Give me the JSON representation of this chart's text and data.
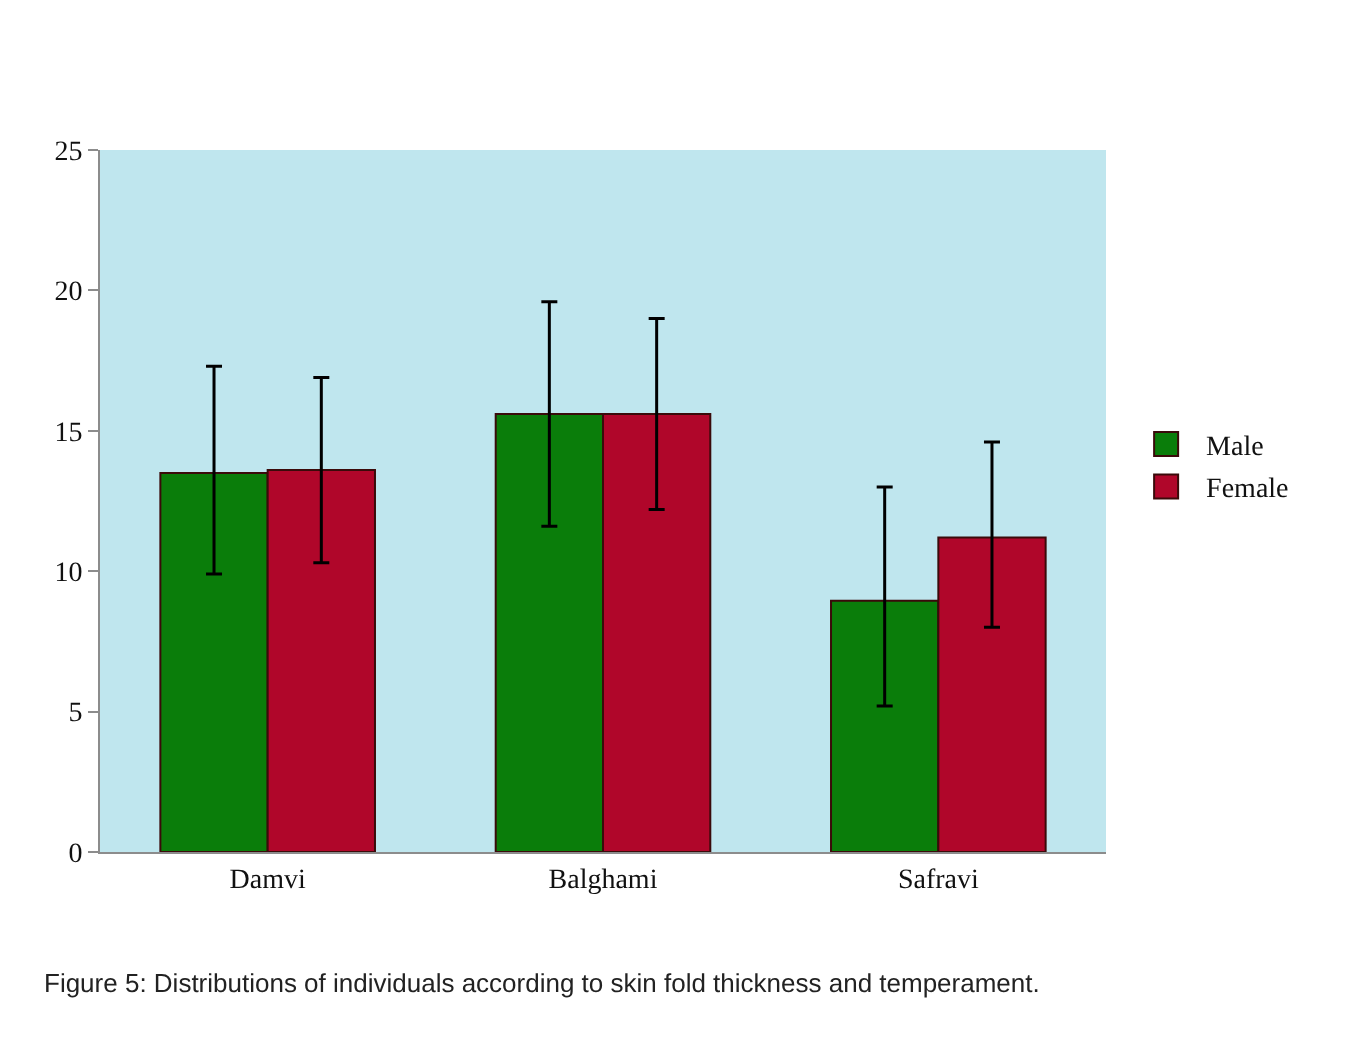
{
  "chart_data": {
    "type": "bar",
    "categories": [
      "Damvi",
      "Balghami",
      "Safravi"
    ],
    "series": [
      {
        "name": "Male",
        "color": "#0a7d0a",
        "values": [
          13.5,
          15.6,
          8.95
        ],
        "errors": [
          [
            9.9,
            17.3
          ],
          [
            11.6,
            19.6
          ],
          [
            5.2,
            13.0
          ]
        ]
      },
      {
        "name": "Female",
        "color": "#b0062a",
        "values": [
          13.6,
          15.6,
          11.2
        ],
        "errors": [
          [
            10.3,
            16.9
          ],
          [
            12.2,
            19.0
          ],
          [
            8.0,
            14.6
          ]
        ]
      }
    ],
    "ylim": [
      0,
      25
    ],
    "yticks": [
      0,
      5,
      10,
      15,
      20,
      25
    ],
    "grid": false,
    "legend": "right",
    "annotations": [
      "Figure 5: Distributions of individuals according to skin fold thickness and temperament."
    ]
  }
}
